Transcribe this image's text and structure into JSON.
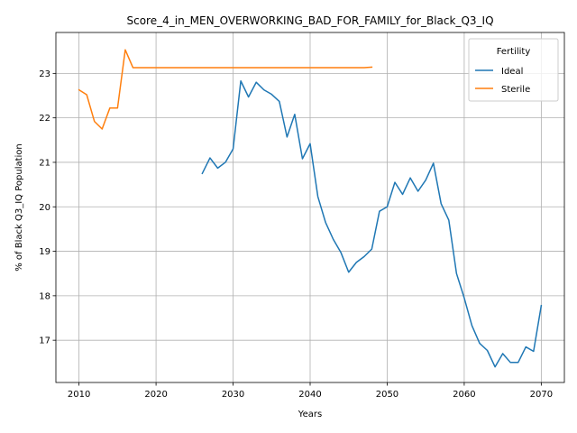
{
  "chart_data": {
    "type": "line",
    "title": "Score_4_in_MEN_OVERWORKING_BAD_FOR_FAMILY_for_Black_Q3_IQ",
    "xlabel": "Years",
    "ylabel": "% of Black Q3_IQ Population",
    "xlim": [
      2007,
      2073
    ],
    "ylim": [
      16.05,
      23.92
    ],
    "xticks": [
      2010,
      2020,
      2030,
      2040,
      2050,
      2060,
      2070
    ],
    "yticks": [
      17,
      18,
      19,
      20,
      21,
      22,
      23
    ],
    "grid": true,
    "legend": {
      "title": "Fertility",
      "position": "top-right"
    },
    "series": [
      {
        "name": "Ideal",
        "color": "#1f77b4",
        "x": [
          2026,
          2027,
          2028,
          2029,
          2030,
          2031,
          2032,
          2033,
          2034,
          2035,
          2036,
          2037,
          2038,
          2039,
          2040,
          2041,
          2042,
          2043,
          2044,
          2045,
          2046,
          2047,
          2048,
          2049,
          2050,
          2051,
          2052,
          2053,
          2054,
          2055,
          2056,
          2057,
          2058,
          2059,
          2060,
          2061,
          2062,
          2063,
          2064,
          2065,
          2066,
          2067,
          2068,
          2069,
          2070
        ],
        "values": [
          20.75,
          21.1,
          20.87,
          21.0,
          21.3,
          22.83,
          22.47,
          22.8,
          22.63,
          22.53,
          22.37,
          21.57,
          22.08,
          21.08,
          21.42,
          20.23,
          19.65,
          19.27,
          18.97,
          18.53,
          18.75,
          18.88,
          19.05,
          19.9,
          20.0,
          20.55,
          20.28,
          20.65,
          20.35,
          20.6,
          20.98,
          20.07,
          19.7,
          18.5,
          17.95,
          17.33,
          16.93,
          16.77,
          16.4,
          16.7,
          16.5,
          16.5,
          16.85,
          16.75,
          17.78
        ]
      },
      {
        "name": "Sterile",
        "color": "#ff7f0e",
        "x": [
          2010,
          2011,
          2012,
          2013,
          2014,
          2015,
          2016,
          2017,
          2018,
          2019,
          2020,
          2021,
          2022,
          2023,
          2024,
          2025,
          2026,
          2027,
          2028,
          2029,
          2030,
          2031,
          2032,
          2033,
          2034,
          2035,
          2036,
          2037,
          2038,
          2039,
          2040,
          2041,
          2042,
          2043,
          2044,
          2045,
          2046,
          2047,
          2048
        ],
        "values": [
          22.63,
          22.52,
          21.92,
          21.75,
          22.22,
          22.22,
          23.53,
          23.13,
          23.13,
          23.13,
          23.13,
          23.13,
          23.13,
          23.13,
          23.13,
          23.13,
          23.13,
          23.13,
          23.13,
          23.13,
          23.13,
          23.13,
          23.13,
          23.13,
          23.13,
          23.13,
          23.13,
          23.13,
          23.13,
          23.13,
          23.13,
          23.13,
          23.13,
          23.13,
          23.13,
          23.13,
          23.13,
          23.13,
          23.14
        ]
      }
    ]
  }
}
